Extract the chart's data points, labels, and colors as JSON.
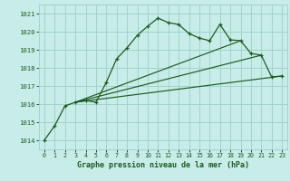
{
  "xlabel": "Graphe pression niveau de la mer (hPa)",
  "ylim": [
    1013.5,
    1021.5
  ],
  "xlim": [
    -0.5,
    23.5
  ],
  "yticks": [
    1014,
    1015,
    1016,
    1017,
    1018,
    1019,
    1020,
    1021
  ],
  "xticks": [
    0,
    1,
    2,
    3,
    4,
    5,
    6,
    7,
    8,
    9,
    10,
    11,
    12,
    13,
    14,
    15,
    16,
    17,
    18,
    19,
    20,
    21,
    22,
    23
  ],
  "bg_color": "#c8ece8",
  "grid_color": "#9fd4cc",
  "line_color": "#1a5c20",
  "main_x": [
    0,
    1,
    2,
    3,
    4,
    5,
    6,
    7,
    8,
    9,
    10,
    11,
    12,
    13,
    14,
    15,
    16,
    17,
    18,
    19,
    20,
    21,
    22,
    23
  ],
  "main_y": [
    1014.0,
    1014.8,
    1015.9,
    1016.1,
    1016.2,
    1016.1,
    1017.2,
    1018.5,
    1019.1,
    1019.8,
    1020.3,
    1020.75,
    1020.5,
    1020.4,
    1019.9,
    1019.65,
    1019.5,
    1020.4,
    1019.55,
    1019.5,
    1018.8,
    1018.7,
    1017.5,
    1017.55
  ],
  "line2_x": [
    3,
    23
  ],
  "line2_y": [
    1016.1,
    1017.55
  ],
  "line3_x": [
    3,
    21
  ],
  "line3_y": [
    1016.1,
    1018.7
  ],
  "line4_x": [
    3,
    19
  ],
  "line4_y": [
    1016.1,
    1019.5
  ]
}
